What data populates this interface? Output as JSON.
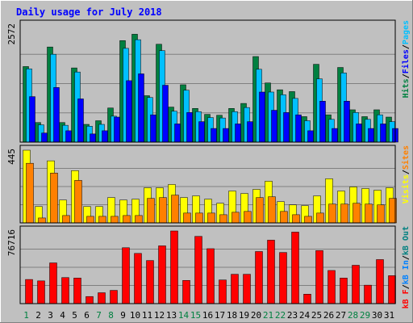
{
  "chart_data": [
    {
      "type": "bar",
      "title": "Daily usage for July 2018",
      "categories": [
        "1",
        "2",
        "3",
        "4",
        "5",
        "6",
        "7",
        "8",
        "9",
        "10",
        "11",
        "12",
        "13",
        "14",
        "15",
        "16",
        "17",
        "18",
        "19",
        "20",
        "21",
        "22",
        "23",
        "24",
        "25",
        "26",
        "27",
        "28",
        "29",
        "30",
        "31"
      ],
      "weekend_days": [
        1,
        7,
        8,
        14,
        15,
        21,
        22,
        28,
        29
      ],
      "ymax_label": "2572",
      "ymax": 2572,
      "legend": [
        "Hits",
        "/",
        "Files",
        "/",
        "Pages"
      ],
      "series": [
        {
          "name": "Hits",
          "color": "#008040",
          "values": [
            1660,
            430,
            2090,
            430,
            1630,
            390,
            470,
            750,
            2230,
            2370,
            1020,
            2150,
            770,
            1260,
            740,
            610,
            590,
            740,
            850,
            1880,
            1300,
            1150,
            1110,
            560,
            1710,
            600,
            1640,
            710,
            560,
            710,
            550
          ]
        },
        {
          "name": "Files",
          "color": "#00c0ff",
          "values": [
            1610,
            380,
            1930,
            370,
            1540,
            350,
            390,
            570,
            2060,
            2250,
            980,
            2010,
            680,
            1140,
            670,
            540,
            530,
            670,
            760,
            1600,
            1100,
            1040,
            960,
            470,
            1390,
            500,
            1520,
            650,
            500,
            600,
            450
          ]
        },
        {
          "name": "Pages",
          "color": "#0000ff",
          "values": [
            1000,
            200,
            1200,
            250,
            950,
            180,
            250,
            550,
            1350,
            1500,
            600,
            1250,
            400,
            650,
            450,
            300,
            300,
            400,
            450,
            1100,
            700,
            650,
            600,
            250,
            900,
            300,
            900,
            400,
            300,
            400,
            300
          ]
        }
      ]
    },
    {
      "type": "bar",
      "ymax_label": "445",
      "ymax": 445,
      "legend": [
        "Visits",
        "/",
        "Sites"
      ],
      "series": [
        {
          "name": "Visits",
          "color": "#ffff00",
          "values": [
            445,
            100,
            380,
            140,
            320,
            100,
            100,
            155,
            140,
            145,
            215,
            215,
            235,
            155,
            165,
            145,
            120,
            195,
            180,
            205,
            255,
            130,
            110,
            105,
            165,
            270,
            195,
            220,
            210,
            200,
            215
          ]
        },
        {
          "name": "Sites",
          "color": "#ff8000",
          "values": [
            365,
            30,
            305,
            45,
            260,
            40,
            40,
            40,
            45,
            45,
            150,
            155,
            170,
            60,
            60,
            60,
            50,
            65,
            70,
            155,
            160,
            70,
            50,
            40,
            60,
            115,
            115,
            120,
            115,
            110,
            150
          ]
        }
      ]
    },
    {
      "type": "bar",
      "ymax_label": "76716",
      "ymax": 76716,
      "legend": [
        "kB F",
        "/",
        "kB In",
        "/",
        "kB Out"
      ],
      "series": [
        {
          "name": "kB F",
          "color": "#ff0000",
          "values": [
            25500,
            24000,
            43000,
            27500,
            27000,
            7500,
            11500,
            14000,
            59000,
            53000,
            45500,
            61000,
            76716,
            24500,
            71000,
            58000,
            25000,
            31000,
            31000,
            55000,
            67000,
            54000,
            75500,
            10000,
            56000,
            35000,
            27000,
            40500,
            19500,
            46500,
            29500
          ]
        }
      ]
    }
  ]
}
